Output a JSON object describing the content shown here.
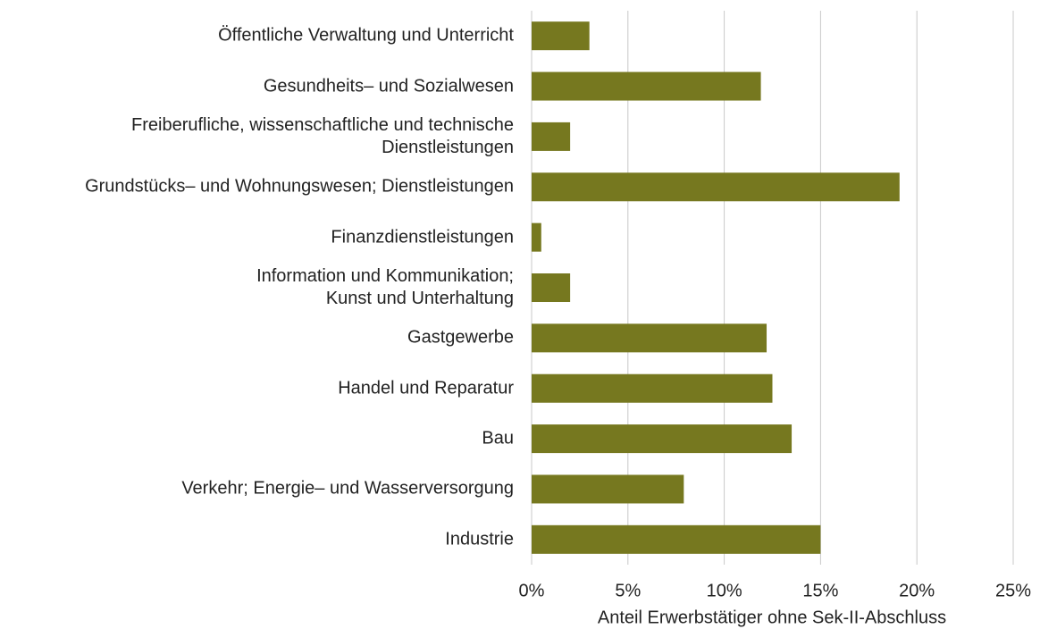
{
  "chart_data": {
    "type": "barh",
    "categories": [
      "Öffentliche Verwaltung und Unterricht",
      "Gesundheits– und Sozialwesen",
      "Freiberufliche, wissenschaftliche und technische\nDienstleistungen",
      "Grundstücks– und Wohnungswesen; Dienstleistungen",
      "Finanzdienstleistungen",
      "Information und Kommunikation;\nKunst und Unterhaltung",
      "Gastgewerbe",
      "Handel und Reparatur",
      "Bau",
      "Verkehr; Energie– und Wasserversorgung",
      "Industrie"
    ],
    "values": [
      3.0,
      11.9,
      2.0,
      19.1,
      0.5,
      2.0,
      12.2,
      12.5,
      13.5,
      7.9,
      15.0
    ],
    "color": "#76781f",
    "xlabel": "Anteil Erwerbstätiger ohne Sek-II-Abschluss",
    "xlim": [
      0,
      25
    ],
    "xticks": [
      {
        "value": 0,
        "label": "0%"
      },
      {
        "value": 5,
        "label": "5%"
      },
      {
        "value": 10,
        "label": "10%"
      },
      {
        "value": 15,
        "label": "15%"
      },
      {
        "value": 20,
        "label": "20%"
      },
      {
        "value": 25,
        "label": "25%"
      }
    ],
    "grid": true
  }
}
